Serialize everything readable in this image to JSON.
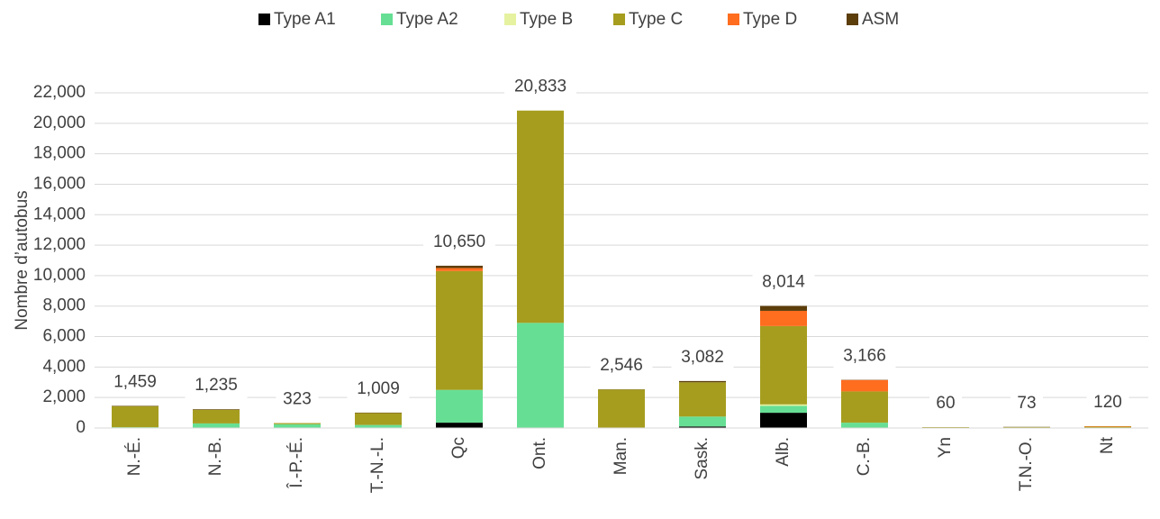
{
  "chart_data": {
    "type": "stacked_bar",
    "y_axis_label": "Nombre d’autobus",
    "categories": [
      "N.-É.",
      "N.-B.",
      "Î.-P.-É.",
      "T.-N.-L.",
      "Qc",
      "Ont.",
      "Man.",
      "Sask.",
      "Alb.",
      "C.-B.",
      "Yn",
      "T.N.-O.",
      "Nt"
    ],
    "series": [
      {
        "name": "Type A1",
        "color": "#000000",
        "values": [
          0,
          0,
          0,
          0,
          350,
          0,
          0,
          100,
          1000,
          0,
          0,
          0,
          0
        ]
      },
      {
        "name": "Type A2",
        "color": "#66df94",
        "values": [
          50,
          300,
          250,
          200,
          2150,
          6900,
          30,
          650,
          450,
          350,
          0,
          0,
          0
        ]
      },
      {
        "name": "Type B",
        "color": "#e6f2a0",
        "values": [
          0,
          0,
          0,
          0,
          0,
          0,
          0,
          0,
          100,
          0,
          0,
          0,
          0
        ]
      },
      {
        "name": "Type C",
        "color": "#a69d1f",
        "values": [
          1380,
          900,
          73,
          780,
          7800,
          13933,
          2500,
          2250,
          5140,
          2050,
          60,
          60,
          90
        ]
      },
      {
        "name": "Type D",
        "color": "#ff6d1f",
        "values": [
          0,
          0,
          0,
          0,
          200,
          0,
          0,
          0,
          1000,
          750,
          0,
          0,
          30
        ]
      },
      {
        "name": "ASM",
        "color": "#5c3e0b",
        "values": [
          29,
          35,
          0,
          29,
          150,
          0,
          16,
          82,
          324,
          16,
          0,
          13,
          0
        ]
      }
    ],
    "totals": [
      1459,
      1235,
      323,
      1009,
      10650,
      20833,
      2546,
      3082,
      8014,
      3166,
      60,
      73,
      120
    ],
    "total_labels": [
      "1,459",
      "1,235",
      "323",
      "1,009",
      "10,650",
      "20,833",
      "2,546",
      "3,082",
      "8,014",
      "3,166",
      "60",
      "73",
      "120"
    ],
    "ylim": [
      0,
      22000
    ],
    "yticks": [
      0,
      {
        "value": 2000,
        "label": "2,000"
      },
      {
        "value": 4000,
        "label": "4,000"
      },
      {
        "value": 6000,
        "label": "6,000"
      },
      {
        "value": 8000,
        "label": "8,000"
      },
      {
        "value": 10000,
        "label": "10,000"
      },
      {
        "value": 12000,
        "label": "12,000"
      },
      {
        "value": 14000,
        "label": "14,000"
      },
      {
        "value": 16000,
        "label": "16,000"
      },
      {
        "value": 18000,
        "label": "18,000"
      },
      {
        "value": 20000,
        "label": "20,000"
      },
      {
        "value": 22000,
        "label": "22,000"
      }
    ],
    "grid": true,
    "legend": "top"
  }
}
